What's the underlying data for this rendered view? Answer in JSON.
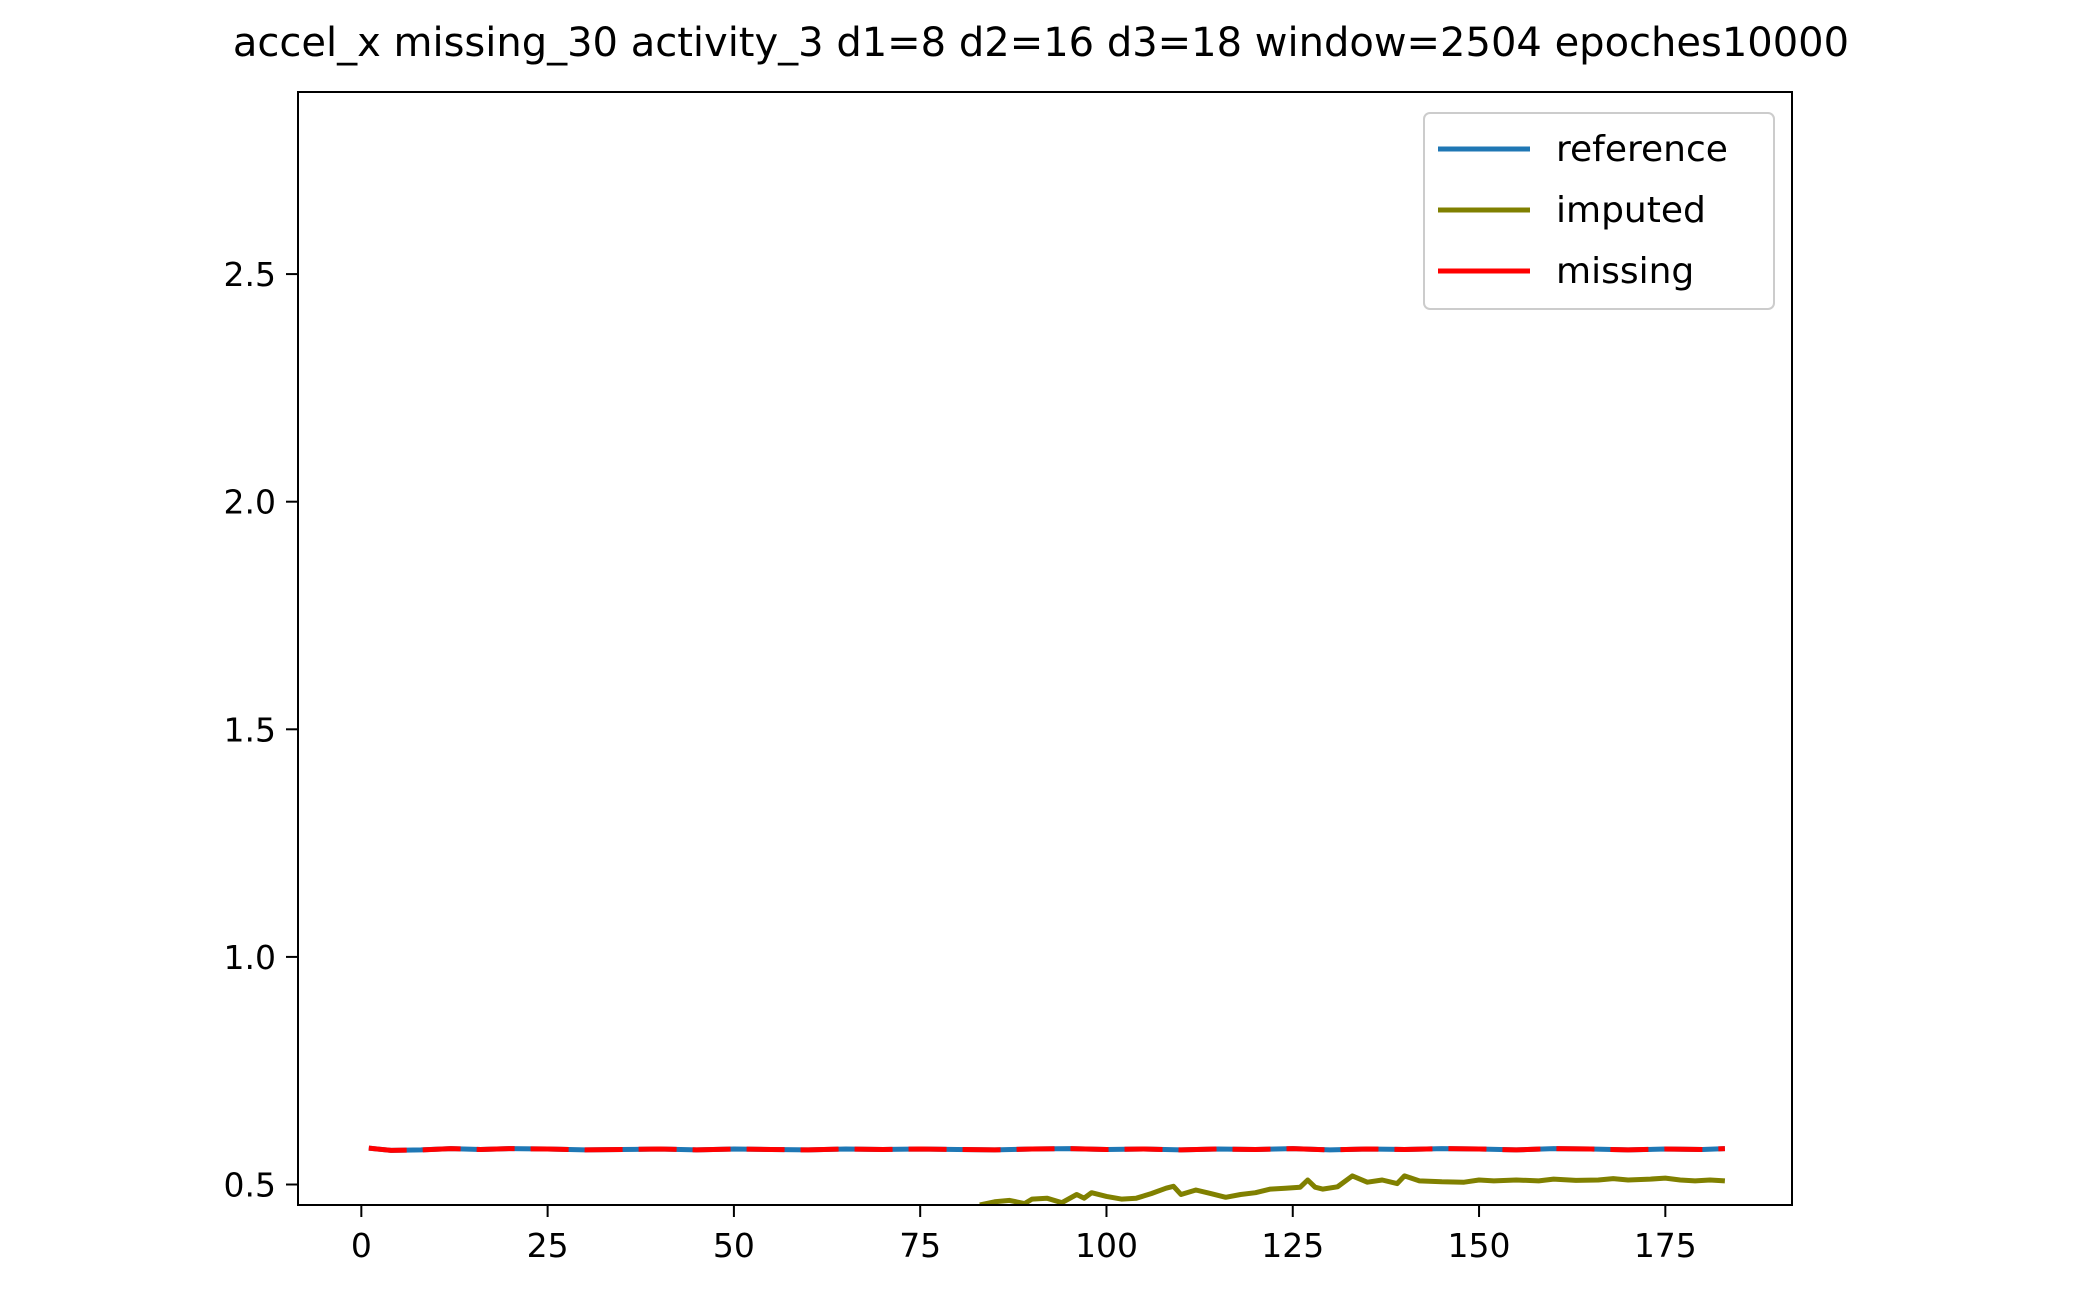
{
  "chart_data": {
    "type": "line",
    "title": "accel_x missing_30 activity_3 d1=8 d2=16 d3=18 window=2504 epoches10000",
    "xlabel": "",
    "ylabel": "",
    "xlim": [
      -8.5,
      192
    ],
    "ylim": [
      0.455,
      2.9
    ],
    "x_ticks": [
      0,
      25,
      50,
      75,
      100,
      125,
      150,
      175
    ],
    "y_ticks": [
      0.5,
      1.0,
      1.5,
      2.0,
      2.5
    ],
    "x_tick_labels": [
      "0",
      "25",
      "50",
      "75",
      "100",
      "125",
      "150",
      "175"
    ],
    "y_tick_labels": [
      "0.5",
      "1.0",
      "1.5",
      "2.0",
      "2.5"
    ],
    "grid": false,
    "legend_position": "top-right",
    "series": [
      {
        "name": "reference",
        "color": "#1f77b4",
        "x": [
          1,
          4,
          8,
          12,
          16,
          20,
          25,
          30,
          35,
          40,
          45,
          50,
          55,
          60,
          65,
          70,
          75,
          80,
          85,
          90,
          95,
          100,
          105,
          110,
          115,
          120,
          125,
          130,
          135,
          140,
          145,
          150,
          155,
          160,
          165,
          170,
          175,
          180,
          183
        ],
        "y": [
          0.58,
          0.575,
          0.576,
          0.579,
          0.577,
          0.579,
          0.578,
          0.576,
          0.577,
          0.578,
          0.576,
          0.578,
          0.577,
          0.576,
          0.578,
          0.577,
          0.578,
          0.577,
          0.576,
          0.578,
          0.579,
          0.577,
          0.578,
          0.576,
          0.578,
          0.577,
          0.579,
          0.576,
          0.578,
          0.577,
          0.579,
          0.578,
          0.576,
          0.579,
          0.578,
          0.576,
          0.578,
          0.577,
          0.579
        ]
      },
      {
        "name": "imputed",
        "color": "#808000",
        "x": [
          83,
          85,
          87,
          89,
          90,
          92,
          94,
          96,
          97,
          98,
          100,
          102,
          104,
          106,
          108,
          109,
          110,
          112,
          114,
          116,
          118,
          120,
          122,
          124,
          126,
          127,
          128,
          129,
          131,
          133,
          135,
          137,
          139,
          140,
          142,
          145,
          148,
          150,
          152,
          155,
          158,
          160,
          163,
          166,
          168,
          170,
          173,
          175,
          177,
          179,
          181,
          183
        ],
        "y": [
          0.455,
          0.462,
          0.465,
          0.458,
          0.468,
          0.47,
          0.46,
          0.478,
          0.47,
          0.482,
          0.474,
          0.468,
          0.47,
          0.48,
          0.492,
          0.496,
          0.478,
          0.488,
          0.48,
          0.472,
          0.478,
          0.482,
          0.49,
          0.492,
          0.494,
          0.51,
          0.494,
          0.49,
          0.495,
          0.519,
          0.505,
          0.51,
          0.502,
          0.519,
          0.508,
          0.506,
          0.505,
          0.51,
          0.508,
          0.51,
          0.508,
          0.512,
          0.509,
          0.51,
          0.513,
          0.51,
          0.512,
          0.514,
          0.51,
          0.508,
          0.51,
          0.508
        ]
      },
      {
        "name": "missing",
        "color": "#ff0000",
        "dash": true,
        "x": [
          1,
          4,
          8,
          12,
          16,
          20,
          25,
          30,
          35,
          40,
          45,
          50,
          55,
          60,
          65,
          70,
          75,
          80,
          85,
          90,
          95,
          100,
          105,
          110,
          115,
          120,
          125,
          130,
          135,
          140,
          145,
          150,
          155,
          160,
          165,
          170,
          175,
          180,
          183
        ],
        "y": [
          0.58,
          0.575,
          0.576,
          0.579,
          0.577,
          0.579,
          0.578,
          0.576,
          0.577,
          0.578,
          0.576,
          0.578,
          0.577,
          0.576,
          0.578,
          0.577,
          0.578,
          0.577,
          0.576,
          0.578,
          0.579,
          0.577,
          0.578,
          0.576,
          0.578,
          0.577,
          0.579,
          0.576,
          0.578,
          0.577,
          0.579,
          0.578,
          0.576,
          0.579,
          0.578,
          0.576,
          0.578,
          0.577,
          0.579
        ]
      }
    ]
  }
}
